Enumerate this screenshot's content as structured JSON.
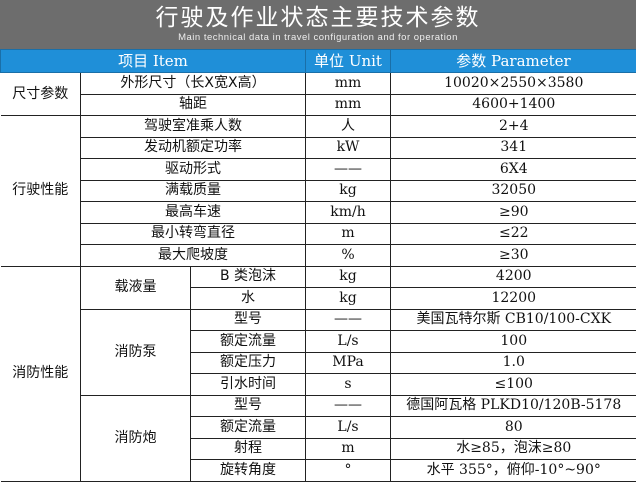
{
  "header": {
    "title": "行驶及作业状态主要技术参数",
    "subtitle": "Main technical data in travel configuration and for operation"
  },
  "columns": {
    "item": "项目 Item",
    "unit": "单位 Unit",
    "param": "参数 Parameter"
  },
  "colors": {
    "banner": "#6d6d6d",
    "header_row": "#1f8fd8"
  },
  "groups": [
    {
      "category": "尺寸参数",
      "rows": [
        {
          "item": "外形尺寸（长X宽X高）",
          "unit": "mm",
          "value": "10020×2550×3580"
        },
        {
          "item": "轴距",
          "unit": "mm",
          "value": "4600+1400"
        }
      ]
    },
    {
      "category": "行驶性能",
      "rows": [
        {
          "item": "驾驶室准乘人数",
          "unit": "人",
          "value": "2+4"
        },
        {
          "item": "发动机额定功率",
          "unit": "kW",
          "value": "341"
        },
        {
          "item": "驱动形式",
          "unit": "——",
          "value": "6X4"
        },
        {
          "item": "满载质量",
          "unit": "kg",
          "value": "32050"
        },
        {
          "item": "最高车速",
          "unit": "km/h",
          "value": "≥90"
        },
        {
          "item": "最小转弯直径",
          "unit": "m",
          "value": "≤22"
        },
        {
          "item": "最大爬坡度",
          "unit": "%",
          "value": "≥30"
        }
      ]
    },
    {
      "category": "消防性能",
      "subgroups": [
        {
          "name": "载液量",
          "rows": [
            {
              "item": "B 类泡沫",
              "unit": "kg",
              "value": "4200"
            },
            {
              "item": "水",
              "unit": "kg",
              "value": "12200"
            }
          ]
        },
        {
          "name": "消防泵",
          "rows": [
            {
              "item": "型号",
              "unit": "——",
              "value": "美国瓦特尔斯 CB10/100-CXK"
            },
            {
              "item": "额定流量",
              "unit": "L/s",
              "value": "100"
            },
            {
              "item": "额定压力",
              "unit": "MPa",
              "value": "1.0"
            },
            {
              "item": "引水时间",
              "unit": "s",
              "value": "≤100"
            }
          ]
        },
        {
          "name": "消防炮",
          "rows": [
            {
              "item": "型号",
              "unit": "——",
              "value": "德国阿瓦格 PLKD10/120B-5178"
            },
            {
              "item": "额定流量",
              "unit": "L/s",
              "value": "80"
            },
            {
              "item": "射程",
              "unit": "m",
              "value": "水≥85，泡沫≥80"
            },
            {
              "item": "旋转角度",
              "unit": "°",
              "value": "水平 355°，俯仰-10°~90°"
            }
          ]
        }
      ]
    }
  ]
}
